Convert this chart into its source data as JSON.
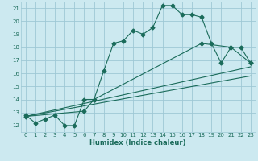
{
  "xlabel": "Humidex (Indice chaleur)",
  "bg_color": "#cce9f0",
  "grid_color": "#9ec8d5",
  "line_color": "#1a6b5a",
  "xlim": [
    -0.5,
    23.5
  ],
  "ylim": [
    11.5,
    21.5
  ],
  "xticks": [
    0,
    1,
    2,
    3,
    4,
    5,
    6,
    7,
    8,
    9,
    10,
    11,
    12,
    13,
    14,
    15,
    16,
    17,
    18,
    19,
    20,
    21,
    22,
    23
  ],
  "yticks": [
    12,
    13,
    14,
    15,
    16,
    17,
    18,
    19,
    20,
    21
  ],
  "series1_x": [
    0,
    1,
    2,
    3,
    4,
    5,
    6,
    7,
    8,
    9,
    10,
    11,
    12,
    13,
    14,
    15,
    16,
    17,
    18,
    19,
    20,
    21,
    22,
    23
  ],
  "series1_y": [
    12.8,
    12.2,
    12.5,
    12.8,
    12.0,
    12.0,
    14.0,
    14.0,
    16.2,
    18.3,
    18.5,
    19.3,
    19.0,
    19.5,
    21.2,
    21.2,
    20.5,
    20.5,
    20.3,
    18.3,
    16.8,
    18.0,
    18.0,
    16.8
  ],
  "series2_x": [
    0,
    6,
    7,
    18,
    21,
    23
  ],
  "series2_y": [
    12.7,
    13.1,
    14.0,
    18.3,
    18.0,
    16.8
  ],
  "series3_x": [
    0,
    23
  ],
  "series3_y": [
    12.7,
    16.5
  ],
  "series4_x": [
    0,
    23
  ],
  "series4_y": [
    12.7,
    15.8
  ]
}
